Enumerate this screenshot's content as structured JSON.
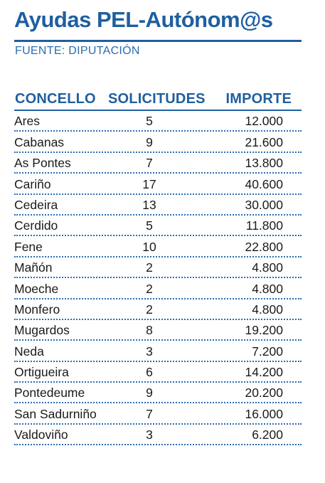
{
  "title": "Ayudas PEL-Autónom@s",
  "source": "FUENTE: DIPUTACIÓN",
  "colors": {
    "accent": "#1f5f9f",
    "source_text": "#2a6db2",
    "text": "#1a1a1a"
  },
  "table": {
    "headers": {
      "concello": "CONCELLO",
      "solicitudes": "SOLICITUDES",
      "importe": "IMPORTE"
    },
    "rows": [
      {
        "concello": "Ares",
        "solicitudes": "5",
        "importe": "12.000"
      },
      {
        "concello": "Cabanas",
        "solicitudes": "9",
        "importe": "21.600"
      },
      {
        "concello": "As Pontes",
        "solicitudes": "7",
        "importe": "13.800"
      },
      {
        "concello": "Cariño",
        "solicitudes": "17",
        "importe": "40.600"
      },
      {
        "concello": "Cedeira",
        "solicitudes": "13",
        "importe": "30.000"
      },
      {
        "concello": "Cerdido",
        "solicitudes": "5",
        "importe": "11.800"
      },
      {
        "concello": "Fene",
        "solicitudes": "10",
        "importe": "22.800"
      },
      {
        "concello": "Mañón",
        "solicitudes": "2",
        "importe": "4.800"
      },
      {
        "concello": "Moeche",
        "solicitudes": "2",
        "importe": "4.800"
      },
      {
        "concello": "Monfero",
        "solicitudes": "2",
        "importe": "4.800"
      },
      {
        "concello": "Mugardos",
        "solicitudes": "8",
        "importe": "19.200"
      },
      {
        "concello": "Neda",
        "solicitudes": "3",
        "importe": "7.200"
      },
      {
        "concello": "Ortigueira",
        "solicitudes": "6",
        "importe": "14.200"
      },
      {
        "concello": "Pontedeume",
        "solicitudes": "9",
        "importe": "20.200"
      },
      {
        "concello": "San Sadurniño",
        "solicitudes": "7",
        "importe": "16.000"
      },
      {
        "concello": "Valdoviño",
        "solicitudes": "3",
        "importe": "6.200"
      }
    ]
  }
}
